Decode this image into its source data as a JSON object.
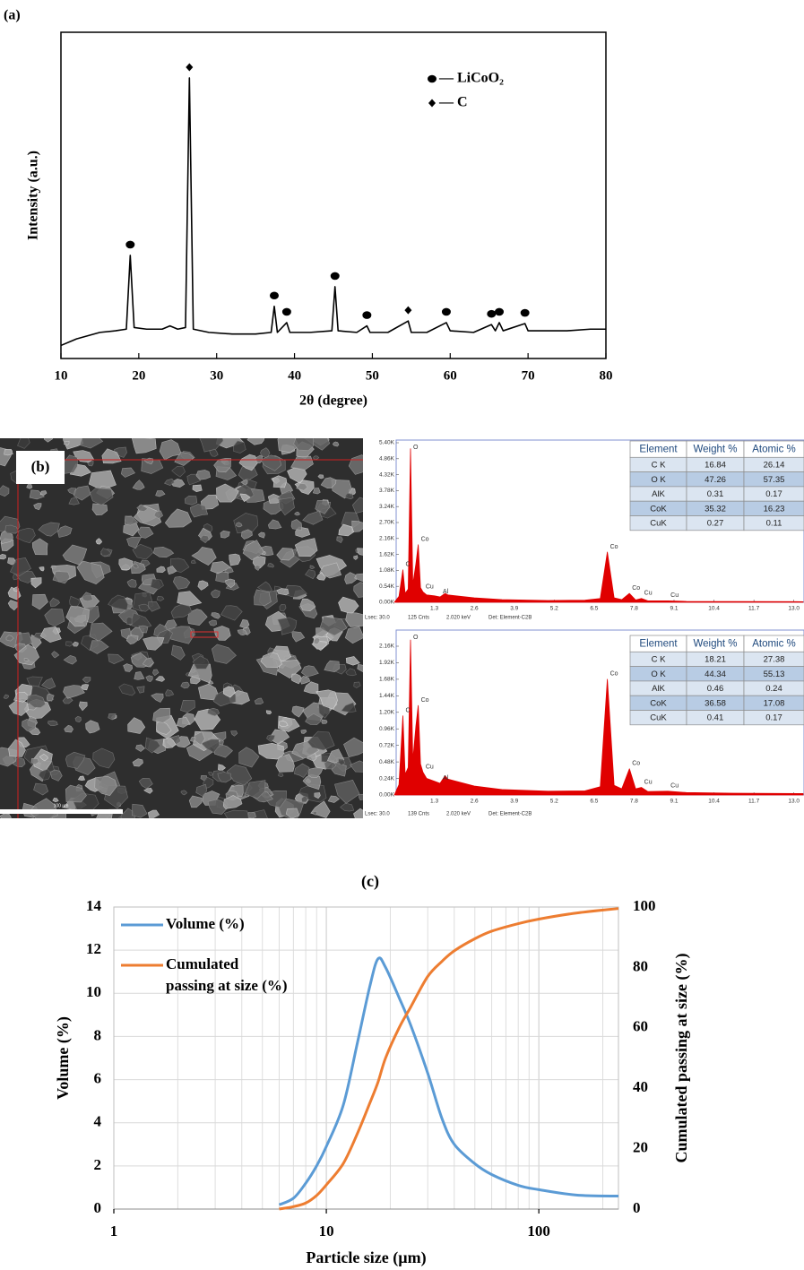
{
  "sem_image": {
    "label": "(b)",
    "scale_bar_label": "100 µm"
  },
  "chart_data": [
    {
      "type": "line",
      "title": "(a)",
      "xlabel": "2θ (degree)",
      "ylabel": "Intensity (a.u.)",
      "xlim": [
        10,
        80
      ],
      "xticks": [
        10,
        20,
        30,
        40,
        50,
        60,
        70,
        80
      ],
      "ylim": [
        0,
        100
      ],
      "grid": false,
      "series": [
        {
          "color": "#000000",
          "x": [
            10,
            12,
            15,
            17,
            18.4,
            18.9,
            19.4,
            21,
            23,
            24,
            25,
            26,
            26.5,
            27,
            29,
            32,
            35,
            37,
            37.4,
            37.8,
            39,
            39.4,
            42,
            44.8,
            45.2,
            45.6,
            48,
            49.3,
            49.7,
            52,
            54.6,
            55,
            57,
            59.5,
            60,
            63,
            65.3,
            65.8,
            66.3,
            66.8,
            69.6,
            70,
            75,
            78,
            80
          ],
          "values": [
            4,
            6,
            8,
            8.5,
            9,
            31.6,
            9.5,
            9,
            9,
            10,
            9,
            9.5,
            86,
            9,
            8,
            7.5,
            7.5,
            8,
            16,
            8,
            11,
            8,
            8,
            8.5,
            22,
            8.5,
            8,
            10,
            8,
            8,
            11.5,
            8,
            8,
            11,
            8.5,
            8,
            10.4,
            8.5,
            11,
            8.5,
            10.7,
            8.5,
            8.5,
            9,
            9
          ]
        }
      ],
      "peak_markers": [
        {
          "x": 18.9,
          "symbol": "circle"
        },
        {
          "x": 26.5,
          "symbol": "diamond"
        },
        {
          "x": 37.4,
          "symbol": "circle"
        },
        {
          "x": 39,
          "symbol": "circle"
        },
        {
          "x": 45.2,
          "symbol": "circle"
        },
        {
          "x": 49.3,
          "symbol": "circle"
        },
        {
          "x": 54.6,
          "symbol": "diamond"
        },
        {
          "x": 59.5,
          "symbol": "circle"
        },
        {
          "x": 65.3,
          "symbol": "circle"
        },
        {
          "x": 66.3,
          "symbol": "circle"
        },
        {
          "x": 69.6,
          "symbol": "circle"
        }
      ],
      "legend_entries": [
        {
          "label": "— LiCoO₂",
          "symbol": "circle"
        },
        {
          "label": "— C",
          "symbol": "diamond"
        }
      ]
    },
    {
      "type": "area",
      "color": "#e00000",
      "xlim": [
        0,
        13.3
      ],
      "xticks": [
        1.3,
        2.6,
        3.9,
        5.2,
        6.5,
        7.8,
        9.1,
        10.4,
        11.7,
        {
          "value": 13,
          "label": "13.0"
        }
      ],
      "ylim": [
        0,
        5400
      ],
      "yticks": [
        {
          "value": 0,
          "label": "0.00K"
        },
        {
          "value": 540,
          "label": "0.54K"
        },
        {
          "value": 1080,
          "label": "1.08K"
        },
        {
          "value": 1620,
          "label": "1.62K"
        },
        {
          "value": 2160,
          "label": "2.16K"
        },
        {
          "value": 2700,
          "label": "2.70K"
        },
        {
          "value": 3240,
          "label": "3.24K"
        },
        {
          "value": 3780,
          "label": "3.78K"
        },
        {
          "value": 4320,
          "label": "4.32K"
        },
        {
          "value": 4860,
          "label": "4.86K"
        },
        {
          "value": 5400,
          "label": "5.40K"
        }
      ],
      "x": [
        0,
        0.15,
        0.277,
        0.35,
        0.45,
        0.525,
        0.6,
        0.7,
        0.776,
        0.85,
        0.93,
        1.05,
        1.3,
        1.486,
        1.65,
        1.74,
        2.0,
        2.6,
        3.5,
        5.0,
        6.2,
        6.7,
        6.93,
        7.15,
        7.4,
        7.649,
        7.85,
        8.04,
        8.25,
        8.9,
        9.5,
        11,
        13.3
      ],
      "values": [
        0,
        200,
        1100,
        300,
        450,
        5200,
        600,
        1300,
        1950,
        500,
        350,
        250,
        220,
        180,
        300,
        250,
        220,
        150,
        90,
        60,
        70,
        130,
        1700,
        150,
        90,
        300,
        80,
        130,
        50,
        50,
        30,
        25,
        20
      ],
      "peak_labels": [
        {
          "label": "O",
          "x": 0.525
        },
        {
          "label": "C",
          "x": 0.277
        },
        {
          "label": "Co",
          "x": 0.776
        },
        {
          "label": "Cu",
          "x": 0.93
        },
        {
          "label": "Al",
          "x": 1.486
        },
        {
          "label": "Co",
          "x": 6.93
        },
        {
          "label": "Co",
          "x": 7.649
        },
        {
          "label": "Cu",
          "x": 8.04
        },
        {
          "label": "Cu",
          "x": 8.9
        }
      ],
      "footer": [
        "Lsec: 30.0",
        "125 Cnts",
        "2.020 keV",
        "Det: Element-C2B"
      ],
      "table": {
        "columns": [
          "Element",
          "Weight %",
          "Atomic %"
        ],
        "rows": [
          [
            "C K",
            16.84,
            26.14
          ],
          [
            "O K",
            47.26,
            57.35
          ],
          [
            "AlK",
            0.31,
            0.17
          ],
          [
            "CoK",
            35.32,
            16.23
          ],
          [
            "CuK",
            0.27,
            0.11
          ]
        ]
      }
    },
    {
      "type": "area",
      "color": "#e00000",
      "xlim": [
        0,
        13.3
      ],
      "xticks": [
        1.3,
        2.6,
        3.9,
        5.2,
        6.5,
        7.8,
        9.1,
        10.4,
        11.7,
        {
          "value": 13,
          "label": "13.0"
        }
      ],
      "ylim": [
        0,
        2160
      ],
      "yticks": [
        {
          "value": 0,
          "label": "0.00K"
        },
        {
          "value": 240,
          "label": "0.24K"
        },
        {
          "value": 480,
          "label": "0.48K"
        },
        {
          "value": 720,
          "label": "0.72K"
        },
        {
          "value": 960,
          "label": "0.96K"
        },
        {
          "value": 1200,
          "label": "1.20K"
        },
        {
          "value": 1440,
          "label": "1.44K"
        },
        {
          "value": 1680,
          "label": "1.68K"
        },
        {
          "value": 1920,
          "label": "1.92K"
        },
        {
          "value": 2160,
          "label": "2.16K"
        }
      ],
      "x": [
        0,
        0.15,
        0.277,
        0.35,
        0.45,
        0.525,
        0.6,
        0.7,
        0.776,
        0.85,
        0.93,
        1.05,
        1.3,
        1.486,
        1.65,
        1.74,
        2.0,
        2.6,
        3.5,
        5.0,
        6.2,
        6.7,
        6.93,
        7.15,
        7.4,
        7.649,
        7.85,
        8.04,
        8.25,
        8.9,
        9.5,
        11,
        13.3
      ],
      "values": [
        0,
        150,
        1150,
        300,
        400,
        2250,
        500,
        1000,
        1300,
        450,
        330,
        240,
        200,
        170,
        280,
        230,
        200,
        130,
        80,
        55,
        60,
        120,
        1680,
        140,
        90,
        380,
        90,
        110,
        50,
        55,
        35,
        25,
        20
      ],
      "peak_labels": [
        {
          "label": "O",
          "x": 0.525
        },
        {
          "label": "C",
          "x": 0.277
        },
        {
          "label": "Co",
          "x": 0.776
        },
        {
          "label": "Cu",
          "x": 0.93
        },
        {
          "label": "Al",
          "x": 1.486
        },
        {
          "label": "Co",
          "x": 6.93
        },
        {
          "label": "Co",
          "x": 7.649
        },
        {
          "label": "Cu",
          "x": 8.04
        },
        {
          "label": "Cu",
          "x": 8.9
        }
      ],
      "footer": [
        "Lsec: 30.0",
        "139 Cnts",
        "2.020 keV",
        "Det: Element-C2B"
      ],
      "table": {
        "columns": [
          "Element",
          "Weight %",
          "Atomic %"
        ],
        "rows": [
          [
            "C K",
            18.21,
            27.38
          ],
          [
            "O K",
            44.34,
            55.13
          ],
          [
            "AlK",
            0.46,
            0.24
          ],
          [
            "CoK",
            36.58,
            17.08
          ],
          [
            "CuK",
            0.41,
            0.17
          ]
        ]
      }
    },
    {
      "type": "line",
      "title": "(c)",
      "xlabel": "Particle size (µm)",
      "ylabel": "Volume (%)",
      "y2label": "Cumulated passing at size (%)",
      "xscale": "log",
      "xlim": [
        1,
        237
      ],
      "xticks": [
        1,
        10,
        100
      ],
      "ylim": [
        0,
        14
      ],
      "yticks": [
        0,
        2,
        4,
        6,
        8,
        10,
        12,
        14
      ],
      "y2lim": [
        0,
        100
      ],
      "y2ticks": [
        0,
        20,
        40,
        60,
        80,
        100
      ],
      "grid": true,
      "legend": "upper left",
      "smooth": true,
      "series": [
        {
          "name": "Volume (%)",
          "color": "#5b9bd5",
          "x": [
            6,
            7,
            8,
            9,
            10,
            12,
            14,
            16,
            17.5,
            19,
            22,
            25,
            30,
            35,
            40,
            50,
            60,
            80,
            100,
            150,
            237
          ],
          "values": [
            0.2,
            0.5,
            1.2,
            2,
            2.9,
            4.8,
            7.7,
            10.3,
            11.6,
            11.2,
            9.8,
            8.5,
            6.3,
            4.2,
            3,
            2.1,
            1.6,
            1.1,
            0.9,
            0.65,
            0.6
          ]
        },
        {
          "name": "Cumulated passing at size (%)",
          "color": "#ed7d31",
          "axis": "y2",
          "x": [
            6,
            7,
            8,
            9,
            10,
            12,
            14,
            16,
            17.5,
            19,
            22,
            25,
            30,
            35,
            40,
            50,
            60,
            80,
            100,
            150,
            237
          ],
          "values": [
            0,
            0.8,
            2,
            4.5,
            8,
            15,
            25,
            35,
            42,
            50,
            60,
            67,
            77,
            82,
            85.5,
            89.5,
            92,
            94.5,
            96,
            98,
            99.5
          ]
        }
      ]
    }
  ]
}
